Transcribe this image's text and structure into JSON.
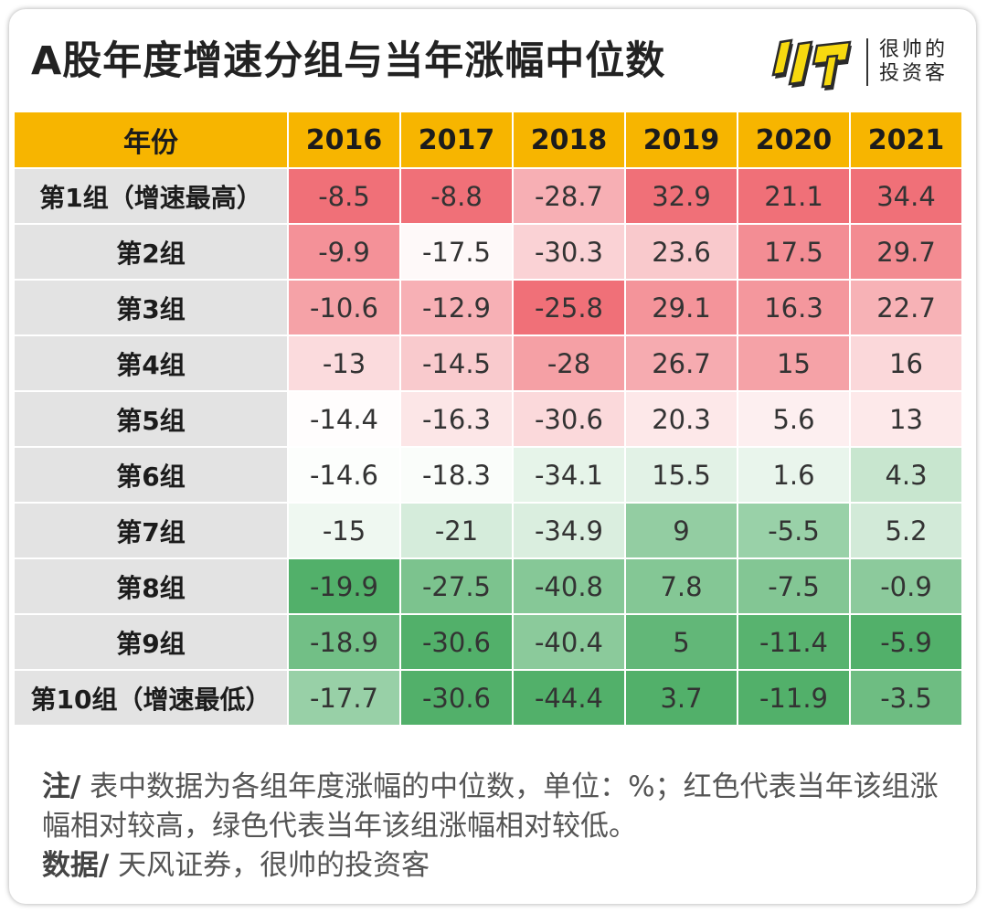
{
  "title": "A股年度增速分组与当年涨幅中位数",
  "logo": {
    "line1": "很帅的",
    "line2": "投资客",
    "mark_icon": "shuai-logo-icon"
  },
  "colors": {
    "header_bg": "#f7b500",
    "rowhead_bg": "#e3e3e3",
    "high": "#f07078",
    "mid": "#ffffff",
    "low": "#52b06a"
  },
  "chart_data": {
    "type": "heatmap",
    "title": "A股年度增速分组与当年涨幅中位数",
    "corner_label": "年份",
    "columns": [
      "2016",
      "2017",
      "2018",
      "2019",
      "2020",
      "2021"
    ],
    "rows": [
      "第1组（增速最高）",
      "第2组",
      "第3组",
      "第4组",
      "第5组",
      "第6组",
      "第7组",
      "第8组",
      "第9组",
      "第10组（增速最低）"
    ],
    "values": [
      [
        -8.5,
        -8.8,
        -28.7,
        32.9,
        21.1,
        34.4
      ],
      [
        -9.9,
        -17.5,
        -30.3,
        23.6,
        17.5,
        29.7
      ],
      [
        -10.6,
        -12.9,
        -25.8,
        29.1,
        16.3,
        22.7
      ],
      [
        -13,
        -14.5,
        -28,
        26.7,
        15,
        16
      ],
      [
        -14.4,
        -16.3,
        -30.6,
        20.3,
        5.6,
        13
      ],
      [
        -14.6,
        -18.3,
        -34.1,
        15.5,
        1.6,
        4.3
      ],
      [
        -15,
        -21,
        -34.9,
        9,
        -5.5,
        5.2
      ],
      [
        -19.9,
        -27.5,
        -40.8,
        7.8,
        -7.5,
        -0.9
      ],
      [
        -18.9,
        -30.6,
        -40.4,
        5,
        -11.4,
        -5.9
      ],
      [
        -17.7,
        -30.6,
        -44.4,
        3.7,
        -11.9,
        -3.5
      ]
    ],
    "color_scale": "per-column: red = relatively high, green = relatively low"
  },
  "notes": {
    "note_label": "注/",
    "note_text": " 表中数据为各组年度涨幅的中位数，单位：%；红色代表当年该组涨幅相对较高，绿色代表当年该组涨幅相对较低。",
    "source_label": "数据/",
    "source_text": " 天风证券，很帅的投资客"
  }
}
